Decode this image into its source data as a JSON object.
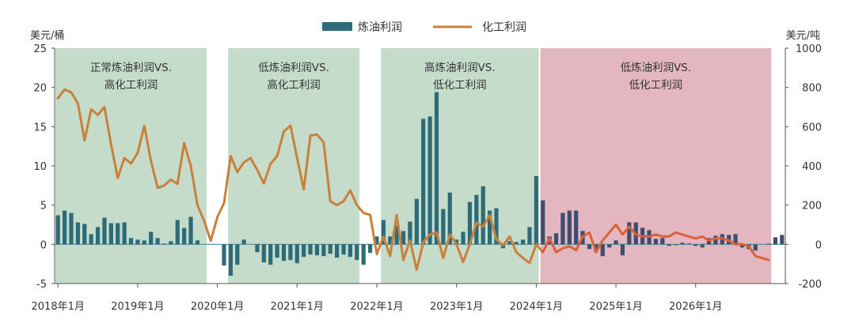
{
  "chart_data": {
    "type": "bar+line",
    "title": "",
    "legend": [
      {
        "name": "炼油利润",
        "kind": "bar",
        "color": "#2e6b78"
      },
      {
        "name": "化工利润",
        "kind": "line",
        "color": "#c8803a"
      }
    ],
    "legend_position": "top-center",
    "y_left_label": "美元/桶",
    "y_right_label": "美元/吨",
    "y_left_range": [
      -5,
      25
    ],
    "y_left_ticks": [
      "-5",
      "0",
      "5",
      "10",
      "15",
      "20",
      "25"
    ],
    "y_right_range": [
      -200,
      1000
    ],
    "y_right_ticks": [
      "-200",
      "0",
      "200",
      "400",
      "600",
      "800",
      "1000"
    ],
    "x_ticks": [
      {
        "label": "2018年1月",
        "index": 0
      },
      {
        "label": "2019年1月",
        "index": 12
      },
      {
        "label": "2020年1月",
        "index": 24
      },
      {
        "label": "2021年1月",
        "index": 36
      },
      {
        "label": "2022年1月",
        "index": 48
      },
      {
        "label": "2023年1月",
        "index": 60
      },
      {
        "label": "2024年1月",
        "index": 72
      },
      {
        "label": "2025年1月",
        "index": 84
      },
      {
        "label": "2026年1月",
        "index": 96
      }
    ],
    "regions": [
      {
        "line1": "正常炼油利润VS.",
        "line2": "高化工利润",
        "from": 0,
        "to": 22,
        "color": "#c5dccb"
      },
      {
        "line1": "低炼油利润VS.",
        "line2": "高化工利润",
        "from": 26,
        "to": 45,
        "color": "#c5dccb"
      },
      {
        "line1": "高炼油利润VS.",
        "line2": "低化工利润",
        "from": 49,
        "to": 72,
        "color": "#c5dccb"
      },
      {
        "line1": "低炼油利润VS.",
        "line2": "低化工利润",
        "from": 73,
        "to": 107,
        "color": "#e4b6c0"
      }
    ],
    "colors": {
      "bar_hist": "#2e6b78",
      "bar_forecast": "#3e4e70",
      "line_hist": "#c8803a",
      "line_forecast": "#d9623a",
      "zero_line": "#4a8aa0"
    },
    "forecast_start_index": 73,
    "series": [
      {
        "name": "炼油利润",
        "axis": "left",
        "values": [
          3.7,
          4.3,
          4.0,
          2.8,
          2.6,
          1.3,
          2.2,
          3.4,
          2.7,
          2.7,
          2.8,
          0.8,
          0.6,
          0.5,
          1.6,
          0.8,
          0.1,
          0.4,
          3.1,
          2.1,
          3.5,
          0.5,
          0,
          0,
          0,
          -2.7,
          -4.0,
          -2.6,
          0.6,
          0,
          -1.0,
          -2.3,
          -2.6,
          -1.7,
          -2.1,
          -2.0,
          -2.4,
          -1.6,
          -1.3,
          -1.4,
          -1.5,
          -1.2,
          -1.7,
          -1.3,
          -1.6,
          -2.0,
          -2.6,
          -1.1,
          1.0,
          3.1,
          1.0,
          2.4,
          1.7,
          2.9,
          5.8,
          16.0,
          16.3,
          19.4,
          4.5,
          6.6,
          0.6,
          1.6,
          5.4,
          6.3,
          7.4,
          4.3,
          4.6,
          -0.5,
          0.4,
          0.3,
          0.6,
          2.2,
          8.7,
          5.6,
          1.0,
          1.4,
          4.0,
          4.3,
          4.3,
          1.7,
          -0.6,
          -0.9,
          -1.5,
          -0.4,
          0.5,
          -1.4,
          2.8,
          2.8,
          2.1,
          1.8,
          0.7,
          0.8,
          -0.2,
          -0.1,
          0.2,
          0.1,
          -0.2,
          -0.4,
          0.8,
          1.1,
          1.3,
          1.2,
          1.3,
          -0.4,
          -0.6,
          -0.8,
          0.0,
          0.1,
          0.9,
          1.2
        ]
      },
      {
        "name": "化工利润",
        "axis": "right",
        "values": [
          745,
          790,
          775,
          718,
          530,
          688,
          660,
          700,
          510,
          338,
          440,
          412,
          466,
          605,
          425,
          288,
          300,
          330,
          308,
          516,
          400,
          200,
          120,
          18,
          140,
          210,
          450,
          368,
          418,
          440,
          380,
          310,
          410,
          450,
          575,
          605,
          440,
          280,
          555,
          560,
          520,
          220,
          200,
          220,
          275,
          200,
          160,
          150,
          -50,
          40,
          -60,
          150,
          -80,
          20,
          -130,
          10,
          50,
          60,
          -70,
          50,
          0,
          -90,
          0,
          110,
          90,
          150,
          25,
          -5,
          40,
          -40,
          -70,
          -95,
          0,
          -40,
          30,
          -40,
          -20,
          -10,
          -30,
          40,
          60,
          -40,
          20,
          60,
          100,
          50,
          90,
          50,
          40,
          40,
          50,
          40,
          40,
          60,
          50,
          40,
          30,
          40,
          20,
          30,
          30,
          20,
          0,
          0,
          -10,
          -60,
          -70,
          -80
        ]
      }
    ]
  }
}
